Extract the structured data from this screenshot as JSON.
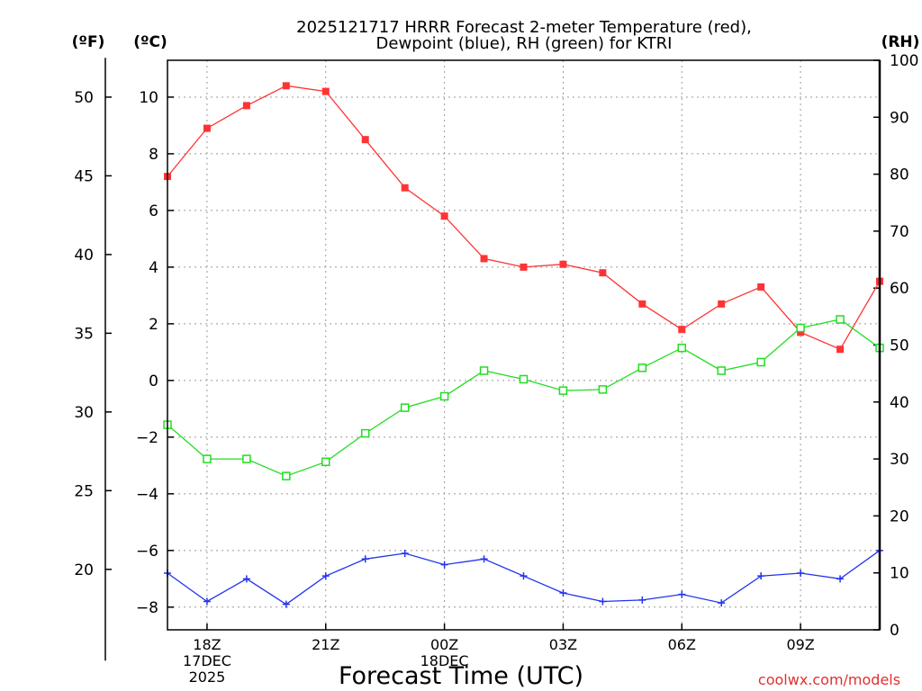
{
  "chart_data": {
    "type": "line",
    "title_line1": "2025121717 HRRR Forecast 2-meter Temperature (red),",
    "title_line2": "Dewpoint (blue), RH (green) for KTRI",
    "left_unit_f": "(ºF)",
    "left_unit_c": "(ºC)",
    "right_unit": "(RH)",
    "xlabel": "Forecast Time (UTC)",
    "watermark": "coolwx.com/models",
    "grid": true,
    "x": [
      0,
      1,
      2,
      3,
      4,
      5,
      6,
      7,
      8,
      9,
      10,
      11,
      12,
      13,
      14,
      15,
      16,
      17,
      18
    ],
    "xlim": [
      0,
      18
    ],
    "celsius_axis": {
      "ylim": [
        -8.8,
        11.3
      ],
      "ticks": [
        10,
        8,
        6,
        4,
        2,
        0,
        -2,
        -4,
        -6,
        -8
      ],
      "tick_labels": [
        "10",
        "8",
        "6",
        "4",
        "2",
        "0",
        "−2",
        "−4",
        "−6",
        "−8"
      ]
    },
    "fahrenheit_axis": {
      "ticks": [
        50,
        45,
        40,
        35,
        30,
        25,
        20
      ],
      "tick_labels": [
        "50",
        "45",
        "40",
        "35",
        "30",
        "25",
        "20"
      ]
    },
    "rh_axis": {
      "ylim": [
        0,
        100
      ],
      "ticks": [
        100,
        90,
        80,
        70,
        60,
        50,
        40,
        30,
        20,
        10,
        0
      ],
      "tick_labels": [
        "100",
        "90",
        "80",
        "70",
        "60",
        "50",
        "40",
        "30",
        "20",
        "10",
        "0"
      ]
    },
    "x_ticks": [
      {
        "x": 1,
        "lines": [
          "18Z",
          "17DEC",
          "2025"
        ]
      },
      {
        "x": 4,
        "lines": [
          "21Z"
        ]
      },
      {
        "x": 7,
        "lines": [
          "00Z",
          "18DEC"
        ]
      },
      {
        "x": 10,
        "lines": [
          "03Z"
        ]
      },
      {
        "x": 13,
        "lines": [
          "06Z"
        ]
      },
      {
        "x": 16,
        "lines": [
          "09Z"
        ]
      }
    ],
    "series": [
      {
        "name": "Temperature",
        "axis": "celsius",
        "color": "#ff3333",
        "marker": "filled-square",
        "values": [
          7.2,
          8.9,
          9.7,
          10.4,
          10.2,
          8.5,
          6.8,
          5.8,
          4.3,
          4.0,
          4.1,
          3.8,
          2.7,
          1.8,
          2.7,
          3.3,
          1.7,
          1.1,
          3.5
        ]
      },
      {
        "name": "Dewpoint",
        "axis": "celsius",
        "color": "#2233ee",
        "marker": "plus",
        "values": [
          -6.8,
          -7.8,
          -7.0,
          -7.9,
          -6.9,
          -6.3,
          -6.1,
          -6.5,
          -6.3,
          -6.9,
          -7.5,
          -7.8,
          -7.75,
          -7.55,
          -7.85,
          -6.9,
          -6.8,
          -7.0,
          -6.0
        ]
      },
      {
        "name": "RH",
        "axis": "rh",
        "color": "#22dd22",
        "marker": "open-square",
        "values": [
          36,
          30,
          30,
          27,
          29.5,
          34.5,
          39,
          41,
          45.5,
          44,
          42,
          42.2,
          46,
          49.5,
          45.5,
          47,
          53,
          54.5,
          49.5
        ]
      }
    ]
  }
}
